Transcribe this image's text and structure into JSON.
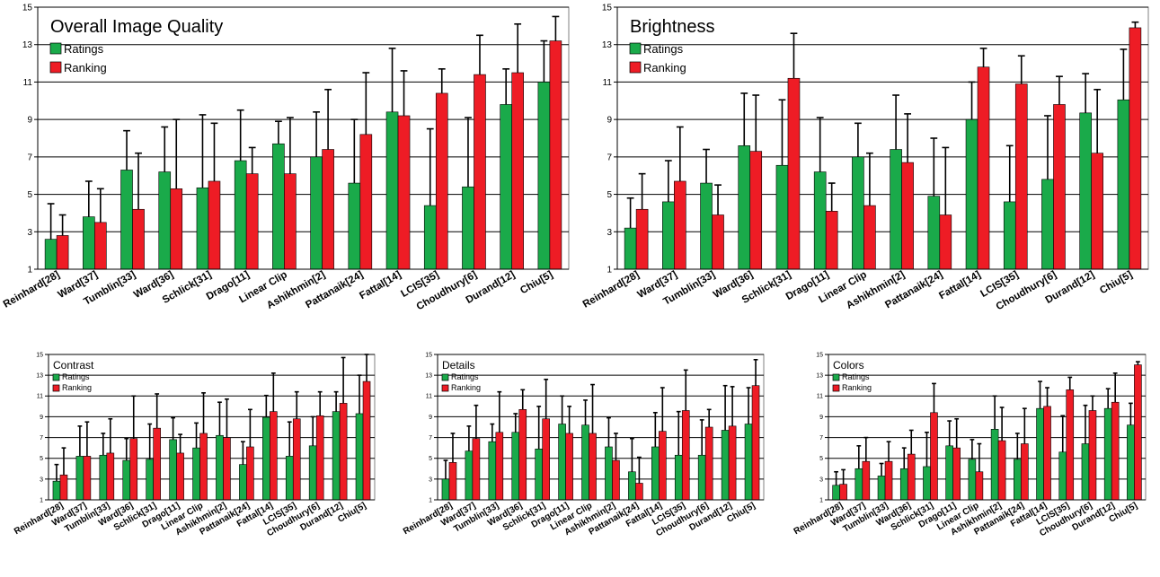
{
  "colors": {
    "ratings": "#1aaa4a",
    "ranking": "#ee1c25",
    "grid": "#000000",
    "error_bar": "#000000"
  },
  "methods": [
    "Reinhard[28]",
    "Ward[37]",
    "Tumblin[33]",
    "Ward[36]",
    "Schlick[31]",
    "Drago[11]",
    "Linear Clip",
    "Ashikhmin[2]",
    "Pattanaik[24]",
    "Fattal[14]",
    "LCIS[35]",
    "Choudhury[6]",
    "Durand[12]",
    "Chiu[5]"
  ],
  "chart_data": [
    {
      "type": "bar",
      "title": "Overall Image Quality",
      "categories": [
        "Reinhard[28]",
        "Ward[37]",
        "Tumblin[33]",
        "Ward[36]",
        "Schlick[31]",
        "Drago[11]",
        "Linear Clip",
        "Ashikhmin[2]",
        "Pattanaik[24]",
        "Fattal[14]",
        "LCIS[35]",
        "Choudhury[6]",
        "Durand[12]",
        "Chiu[5]"
      ],
      "ylim": [
        1,
        15
      ],
      "yticks": [
        "1",
        "3",
        "5",
        "7",
        "9",
        "11",
        "13",
        "15"
      ],
      "grid": true,
      "legend": "top-left",
      "error_bars": "upper",
      "series": [
        {
          "name": "Ratings",
          "values": [
            2.6,
            3.8,
            6.3,
            6.2,
            5.35,
            6.8,
            7.7,
            7.0,
            5.6,
            9.4,
            4.4,
            5.4,
            9.8,
            11.0
          ],
          "errors": [
            1.9,
            1.9,
            2.1,
            2.4,
            3.9,
            2.7,
            1.2,
            2.4,
            3.4,
            3.4,
            4.1,
            3.7,
            1.9,
            2.2
          ]
        },
        {
          "name": "Ranking",
          "values": [
            2.8,
            3.5,
            4.2,
            5.3,
            5.7,
            6.1,
            6.1,
            7.4,
            8.2,
            9.2,
            10.4,
            11.4,
            11.5,
            13.2
          ],
          "errors": [
            1.1,
            1.8,
            3.0,
            3.7,
            3.1,
            1.4,
            3.0,
            3.2,
            3.3,
            2.4,
            1.3,
            2.1,
            2.6,
            1.3
          ]
        }
      ]
    },
    {
      "type": "bar",
      "title": "Brightness",
      "categories": [
        "Reinhard[28]",
        "Ward[37]",
        "Tumblin[33]",
        "Ward[36]",
        "Schlick[31]",
        "Drago[11]",
        "Linear Clip",
        "Ashikhmin[2]",
        "Pattanaik[24]",
        "Fattal[14]",
        "LCIS[35]",
        "Choudhury[6]",
        "Durand[12]",
        "Chiu[5]"
      ],
      "ylim": [
        1,
        15
      ],
      "yticks": [
        "1",
        "3",
        "5",
        "7",
        "9",
        "11",
        "13",
        "15"
      ],
      "grid": true,
      "legend": "top-left",
      "error_bars": "upper",
      "series": [
        {
          "name": "Ratings",
          "values": [
            3.2,
            4.6,
            5.6,
            7.6,
            6.55,
            6.2,
            7.0,
            7.4,
            4.9,
            9.0,
            4.6,
            5.8,
            9.35,
            10.05
          ],
          "errors": [
            1.6,
            2.2,
            1.8,
            2.8,
            3.5,
            2.9,
            1.8,
            2.9,
            3.1,
            2.0,
            3.0,
            3.4,
            2.1,
            2.7
          ]
        },
        {
          "name": "Ranking",
          "values": [
            4.2,
            5.7,
            3.9,
            7.3,
            11.2,
            4.1,
            4.4,
            6.7,
            3.9,
            11.8,
            10.9,
            9.8,
            7.2,
            13.9
          ],
          "errors": [
            1.9,
            2.9,
            1.6,
            3.0,
            2.4,
            1.5,
            2.8,
            2.6,
            3.6,
            1.0,
            1.5,
            1.5,
            3.4,
            0.3
          ]
        }
      ]
    },
    {
      "type": "bar",
      "title": "Contrast",
      "categories": [
        "Reinhard[28]",
        "Ward[37]",
        "Tumblin[33]",
        "Ward[36]",
        "Schlick[31]",
        "Drago[11]",
        "Linear Clip",
        "Ashikhmin[2]",
        "Pattanaik[24]",
        "Fattal[14]",
        "LCIS[35]",
        "Choudhury[6]",
        "Durand[12]",
        "Chiu[5]"
      ],
      "ylim": [
        1,
        15
      ],
      "yticks": [
        "1",
        "3",
        "5",
        "7",
        "9",
        "11",
        "13",
        "15"
      ],
      "grid": true,
      "legend": "top-left",
      "error_bars": "upper",
      "series": [
        {
          "name": "Ratings",
          "values": [
            2.8,
            5.2,
            5.3,
            4.8,
            4.9,
            6.8,
            6.0,
            7.2,
            4.4,
            8.95,
            5.2,
            6.2,
            9.5,
            9.3
          ],
          "errors": [
            1.6,
            2.9,
            2.1,
            2.1,
            3.4,
            2.1,
            2.4,
            3.2,
            2.2,
            2.1,
            3.3,
            2.8,
            1.9,
            3.7
          ]
        },
        {
          "name": "Ranking",
          "values": [
            3.4,
            5.2,
            5.5,
            6.9,
            7.9,
            5.5,
            7.4,
            7.0,
            6.1,
            9.5,
            8.8,
            9.1,
            10.3,
            12.4
          ],
          "errors": [
            2.6,
            3.3,
            3.3,
            4.1,
            3.3,
            1.8,
            3.9,
            3.7,
            3.6,
            3.7,
            2.6,
            2.3,
            4.4,
            2.8
          ]
        }
      ]
    },
    {
      "type": "bar",
      "title": "Details",
      "categories": [
        "Reinhard[28]",
        "Ward[37]",
        "Tumblin[33]",
        "Ward[36]",
        "Schlick[31]",
        "Drago[11]",
        "Linear Clip",
        "Ashikhmin[2]",
        "Pattanaik[24]",
        "Fattal[14]",
        "LCIS[35]",
        "Choudhury[6]",
        "Durand[12]",
        "Chiu[5]"
      ],
      "ylim": [
        1,
        15
      ],
      "yticks": [
        "1",
        "3",
        "5",
        "7",
        "9",
        "11",
        "13",
        "15"
      ],
      "grid": true,
      "legend": "top-left",
      "error_bars": "upper",
      "series": [
        {
          "name": "Ratings",
          "values": [
            3.0,
            5.7,
            6.6,
            7.5,
            5.9,
            8.3,
            8.2,
            6.1,
            3.7,
            6.1,
            5.3,
            5.3,
            7.7,
            8.3
          ],
          "errors": [
            1.8,
            2.4,
            1.7,
            1.8,
            4.1,
            2.7,
            2.4,
            2.8,
            3.2,
            3.3,
            4.2,
            3.4,
            4.3,
            3.5
          ]
        },
        {
          "name": "Ranking",
          "values": [
            4.6,
            6.9,
            7.5,
            9.7,
            8.8,
            7.4,
            7.4,
            4.8,
            2.6,
            7.6,
            9.6,
            8.0,
            8.1,
            12.0
          ],
          "errors": [
            2.8,
            3.2,
            3.9,
            1.9,
            3.8,
            2.6,
            4.7,
            2.6,
            2.5,
            4.2,
            3.9,
            1.7,
            3.8,
            2.5
          ]
        }
      ]
    },
    {
      "type": "bar",
      "title": "Colors",
      "categories": [
        "Reinhard[28]",
        "Ward[37]",
        "Tumblin[33]",
        "Ward[36]",
        "Schlick[31]",
        "Drago[11]",
        "Linear Clip",
        "Ashikhmin[2]",
        "Pattanaik[24]",
        "Fattal[14]",
        "LCIS[35]",
        "Choudhury[6]",
        "Durand[12]",
        "Chiu[5]"
      ],
      "ylim": [
        1,
        15
      ],
      "yticks": [
        "1",
        "3",
        "5",
        "7",
        "9",
        "11",
        "13",
        "15"
      ],
      "grid": true,
      "legend": "top-left",
      "error_bars": "upper",
      "series": [
        {
          "name": "Ratings",
          "values": [
            2.4,
            4.0,
            3.3,
            4.0,
            4.2,
            6.2,
            4.9,
            7.8,
            4.9,
            9.8,
            5.6,
            6.4,
            9.8,
            8.2
          ],
          "errors": [
            1.3,
            2.2,
            1.2,
            2.0,
            3.3,
            2.4,
            1.9,
            3.2,
            2.5,
            2.6,
            3.5,
            3.7,
            1.9,
            2.1
          ]
        },
        {
          "name": "Ranking",
          "values": [
            2.5,
            4.7,
            4.7,
            5.4,
            9.4,
            6.0,
            3.7,
            6.7,
            6.4,
            10.0,
            11.6,
            9.6,
            10.4,
            14.0
          ],
          "errors": [
            1.4,
            2.3,
            1.9,
            2.3,
            2.8,
            2.8,
            2.7,
            3.2,
            3.4,
            1.8,
            1.2,
            1.4,
            2.8,
            0.3
          ]
        }
      ]
    }
  ]
}
